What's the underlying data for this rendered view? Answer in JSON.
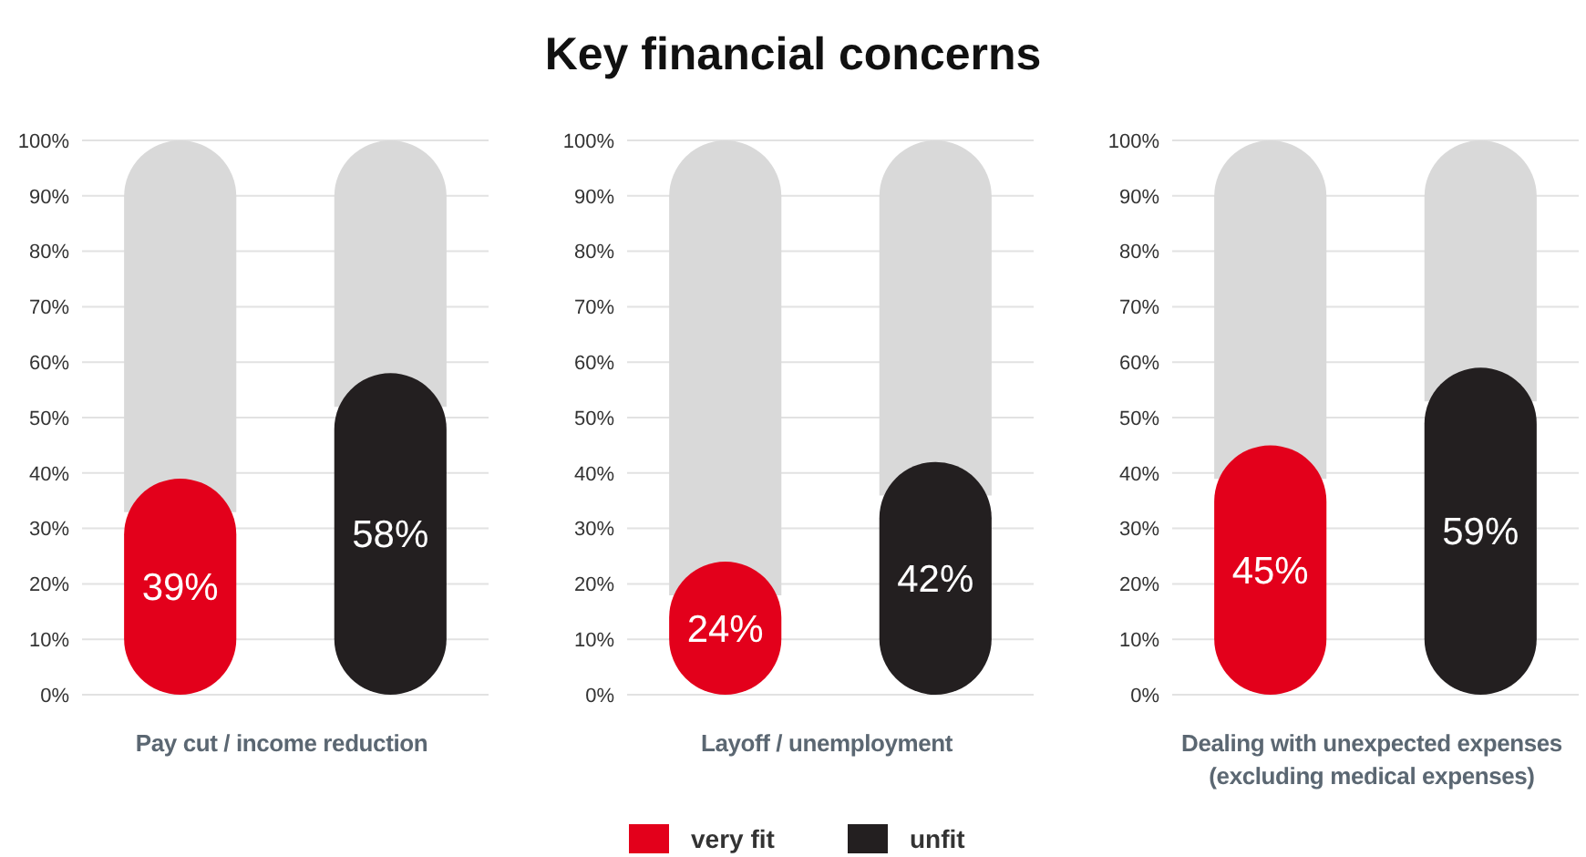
{
  "chart_data": [
    {
      "type": "bar",
      "xlabel": "Pay cut / income reduction",
      "categories": [
        null
      ],
      "ylim": [
        0,
        100
      ],
      "yticks": [
        {
          "value": 0,
          "label": "0%"
        },
        {
          "value": 10,
          "label": "10%"
        },
        {
          "value": 20,
          "label": "20%"
        },
        {
          "value": 30,
          "label": "30%"
        },
        {
          "value": 40,
          "label": "40%"
        },
        {
          "value": 50,
          "label": "50%"
        },
        {
          "value": 60,
          "label": "60%"
        },
        {
          "value": 70,
          "label": "70%"
        },
        {
          "value": 80,
          "label": "80%"
        },
        {
          "value": 90,
          "label": "90%"
        },
        {
          "value": 100,
          "label": "100%"
        }
      ],
      "grid": "y",
      "legend": false,
      "series": [
        {
          "color": "#e3001b",
          "values": [
            39
          ],
          "value_labels": [
            "39%"
          ]
        },
        {
          "color": "#231f20",
          "values": [
            58
          ],
          "value_labels": [
            "58%"
          ]
        }
      ]
    },
    {
      "type": "bar",
      "title": "Key financial concerns",
      "xlabel": "Layoff / unemployment",
      "categories": [
        null
      ],
      "ylim": [
        0,
        100
      ],
      "yticks": [
        {
          "value": 0,
          "label": "0%"
        },
        {
          "value": 10,
          "label": "10%"
        },
        {
          "value": 20,
          "label": "20%"
        },
        {
          "value": 30,
          "label": "30%"
        },
        {
          "value": 40,
          "label": "40%"
        },
        {
          "value": 50,
          "label": "50%"
        },
        {
          "value": 60,
          "label": "60%"
        },
        {
          "value": 70,
          "label": "70%"
        },
        {
          "value": 80,
          "label": "80%"
        },
        {
          "value": 90,
          "label": "90%"
        },
        {
          "value": 100,
          "label": "100%"
        }
      ],
      "grid": "y",
      "legend": "bottom",
      "series": [
        {
          "name": "very fit",
          "color": "#e3001b",
          "values": [
            24
          ],
          "value_labels": [
            "24%"
          ]
        },
        {
          "name": "unfit",
          "color": "#231f20",
          "values": [
            42
          ],
          "value_labels": [
            "42%"
          ]
        }
      ]
    },
    {
      "type": "bar",
      "xlabel": "Dealing with unexpected expenses (excluding medical expenses)",
      "categories": [
        null
      ],
      "ylim": [
        0,
        100
      ],
      "yticks": [
        {
          "value": 0,
          "label": "0%"
        },
        {
          "value": 10,
          "label": "10%"
        },
        {
          "value": 20,
          "label": "20%"
        },
        {
          "value": 30,
          "label": "30%"
        },
        {
          "value": 40,
          "label": "40%"
        },
        {
          "value": 50,
          "label": "50%"
        },
        {
          "value": 60,
          "label": "60%"
        },
        {
          "value": 70,
          "label": "70%"
        },
        {
          "value": 80,
          "label": "80%"
        },
        {
          "value": 90,
          "label": "90%"
        },
        {
          "value": 100,
          "label": "100%"
        }
      ],
      "grid": "y",
      "legend": false,
      "series": [
        {
          "color": "#e3001b",
          "values": [
            45
          ],
          "value_labels": [
            "45%"
          ]
        },
        {
          "color": "#231f20",
          "values": [
            59
          ],
          "value_labels": [
            "59%"
          ]
        }
      ]
    }
  ]
}
